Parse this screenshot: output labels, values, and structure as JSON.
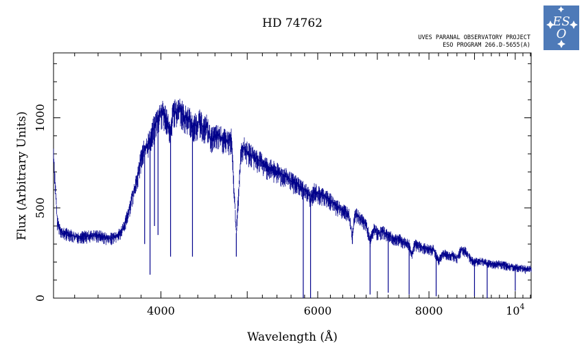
{
  "chart_data": {
    "type": "line",
    "title": "HD 74762",
    "credit_lines": [
      "UVES PARANAL OBSERVATORY PROJECT",
      "ESO PROGRAM 266.D-5655(A)"
    ],
    "logo_text": "ESO",
    "xlabel": "Wavelength (Å)",
    "ylabel": "Flux (Arbitrary Units)",
    "xlim": [
      3030,
      10420
    ],
    "ylim": [
      0,
      1360
    ],
    "x_scale": "log",
    "x_ticks": [
      {
        "value": 4000,
        "label": "4000"
      },
      {
        "value": 6000,
        "label": "6000"
      },
      {
        "value": 8000,
        "label": "8000"
      },
      {
        "value": 10000,
        "label": "10",
        "exponent": "4"
      }
    ],
    "y_ticks": [
      0,
      500,
      1000
    ],
    "grid": false,
    "series": [
      {
        "color": "#00008b",
        "x": [
          3030,
          3060,
          3100,
          3150,
          3200,
          3300,
          3400,
          3500,
          3600,
          3650,
          3700,
          3730,
          3760,
          3800,
          3830,
          3860,
          3890,
          3930,
          3970,
          4000,
          4030,
          4060,
          4101,
          4130,
          4160,
          4200,
          4250,
          4300,
          4340,
          4380,
          4420,
          4470,
          4500,
          4550,
          4600,
          4650,
          4700,
          4750,
          4800,
          4861,
          4920,
          4950,
          5000,
          5100,
          5200,
          5300,
          5400,
          5500,
          5600,
          5700,
          5800,
          5850,
          5893,
          5950,
          6000,
          6100,
          6200,
          6300,
          6400,
          6500,
          6563,
          6600,
          6700,
          6800,
          6870,
          6950,
          7000,
          7100,
          7200,
          7300,
          7400,
          7500,
          7600,
          7650,
          7700,
          7800,
          7900,
          8000,
          8100,
          8200,
          8300,
          8400,
          8500,
          8600,
          8700,
          8800,
          8900,
          9000,
          9100,
          9200,
          9300,
          9400,
          9500,
          9600,
          9700,
          9800,
          9900,
          10000,
          10100,
          10200,
          10300,
          10420
        ],
        "y": [
          800,
          420,
          360,
          360,
          340,
          345,
          350,
          330,
          360,
          420,
          530,
          600,
          650,
          780,
          820,
          850,
          880,
          950,
          1000,
          1030,
          1020,
          1000,
          900,
          1050,
          1020,
          1060,
          1000,
          1000,
          950,
          960,
          980,
          940,
          960,
          880,
          900,
          900,
          880,
          870,
          880,
          360,
          820,
          840,
          810,
          780,
          750,
          720,
          700,
          680,
          650,
          630,
          600,
          580,
          550,
          600,
          580,
          570,
          540,
          510,
          490,
          470,
          340,
          470,
          440,
          410,
          320,
          390,
          360,
          370,
          350,
          330,
          330,
          310,
          300,
          240,
          300,
          290,
          280,
          270,
          270,
          210,
          250,
          240,
          240,
          220,
          270,
          260,
          220,
          200,
          210,
          200,
          195,
          190,
          190,
          190,
          185,
          180,
          175,
          170,
          170,
          165,
          160,
          165
        ]
      }
    ],
    "absorption_features": [
      {
        "x": 3835,
        "y": 300
      },
      {
        "x": 3889,
        "y": 130
      },
      {
        "x": 3934,
        "y": 400
      },
      {
        "x": 3970,
        "y": 350
      },
      {
        "x": 4101,
        "y": 230
      },
      {
        "x": 4340,
        "y": 230
      },
      {
        "x": 4861,
        "y": 230
      },
      {
        "x": 5780,
        "y": 0
      },
      {
        "x": 5890,
        "y": 0
      },
      {
        "x": 6563,
        "y": 300
      },
      {
        "x": 6870,
        "y": 20
      },
      {
        "x": 7200,
        "y": 30
      },
      {
        "x": 7600,
        "y": 20
      },
      {
        "x": 8150,
        "y": 10
      },
      {
        "x": 9000,
        "y": 10
      },
      {
        "x": 9300,
        "y": 0
      },
      {
        "x": 10000,
        "y": 40
      }
    ]
  }
}
